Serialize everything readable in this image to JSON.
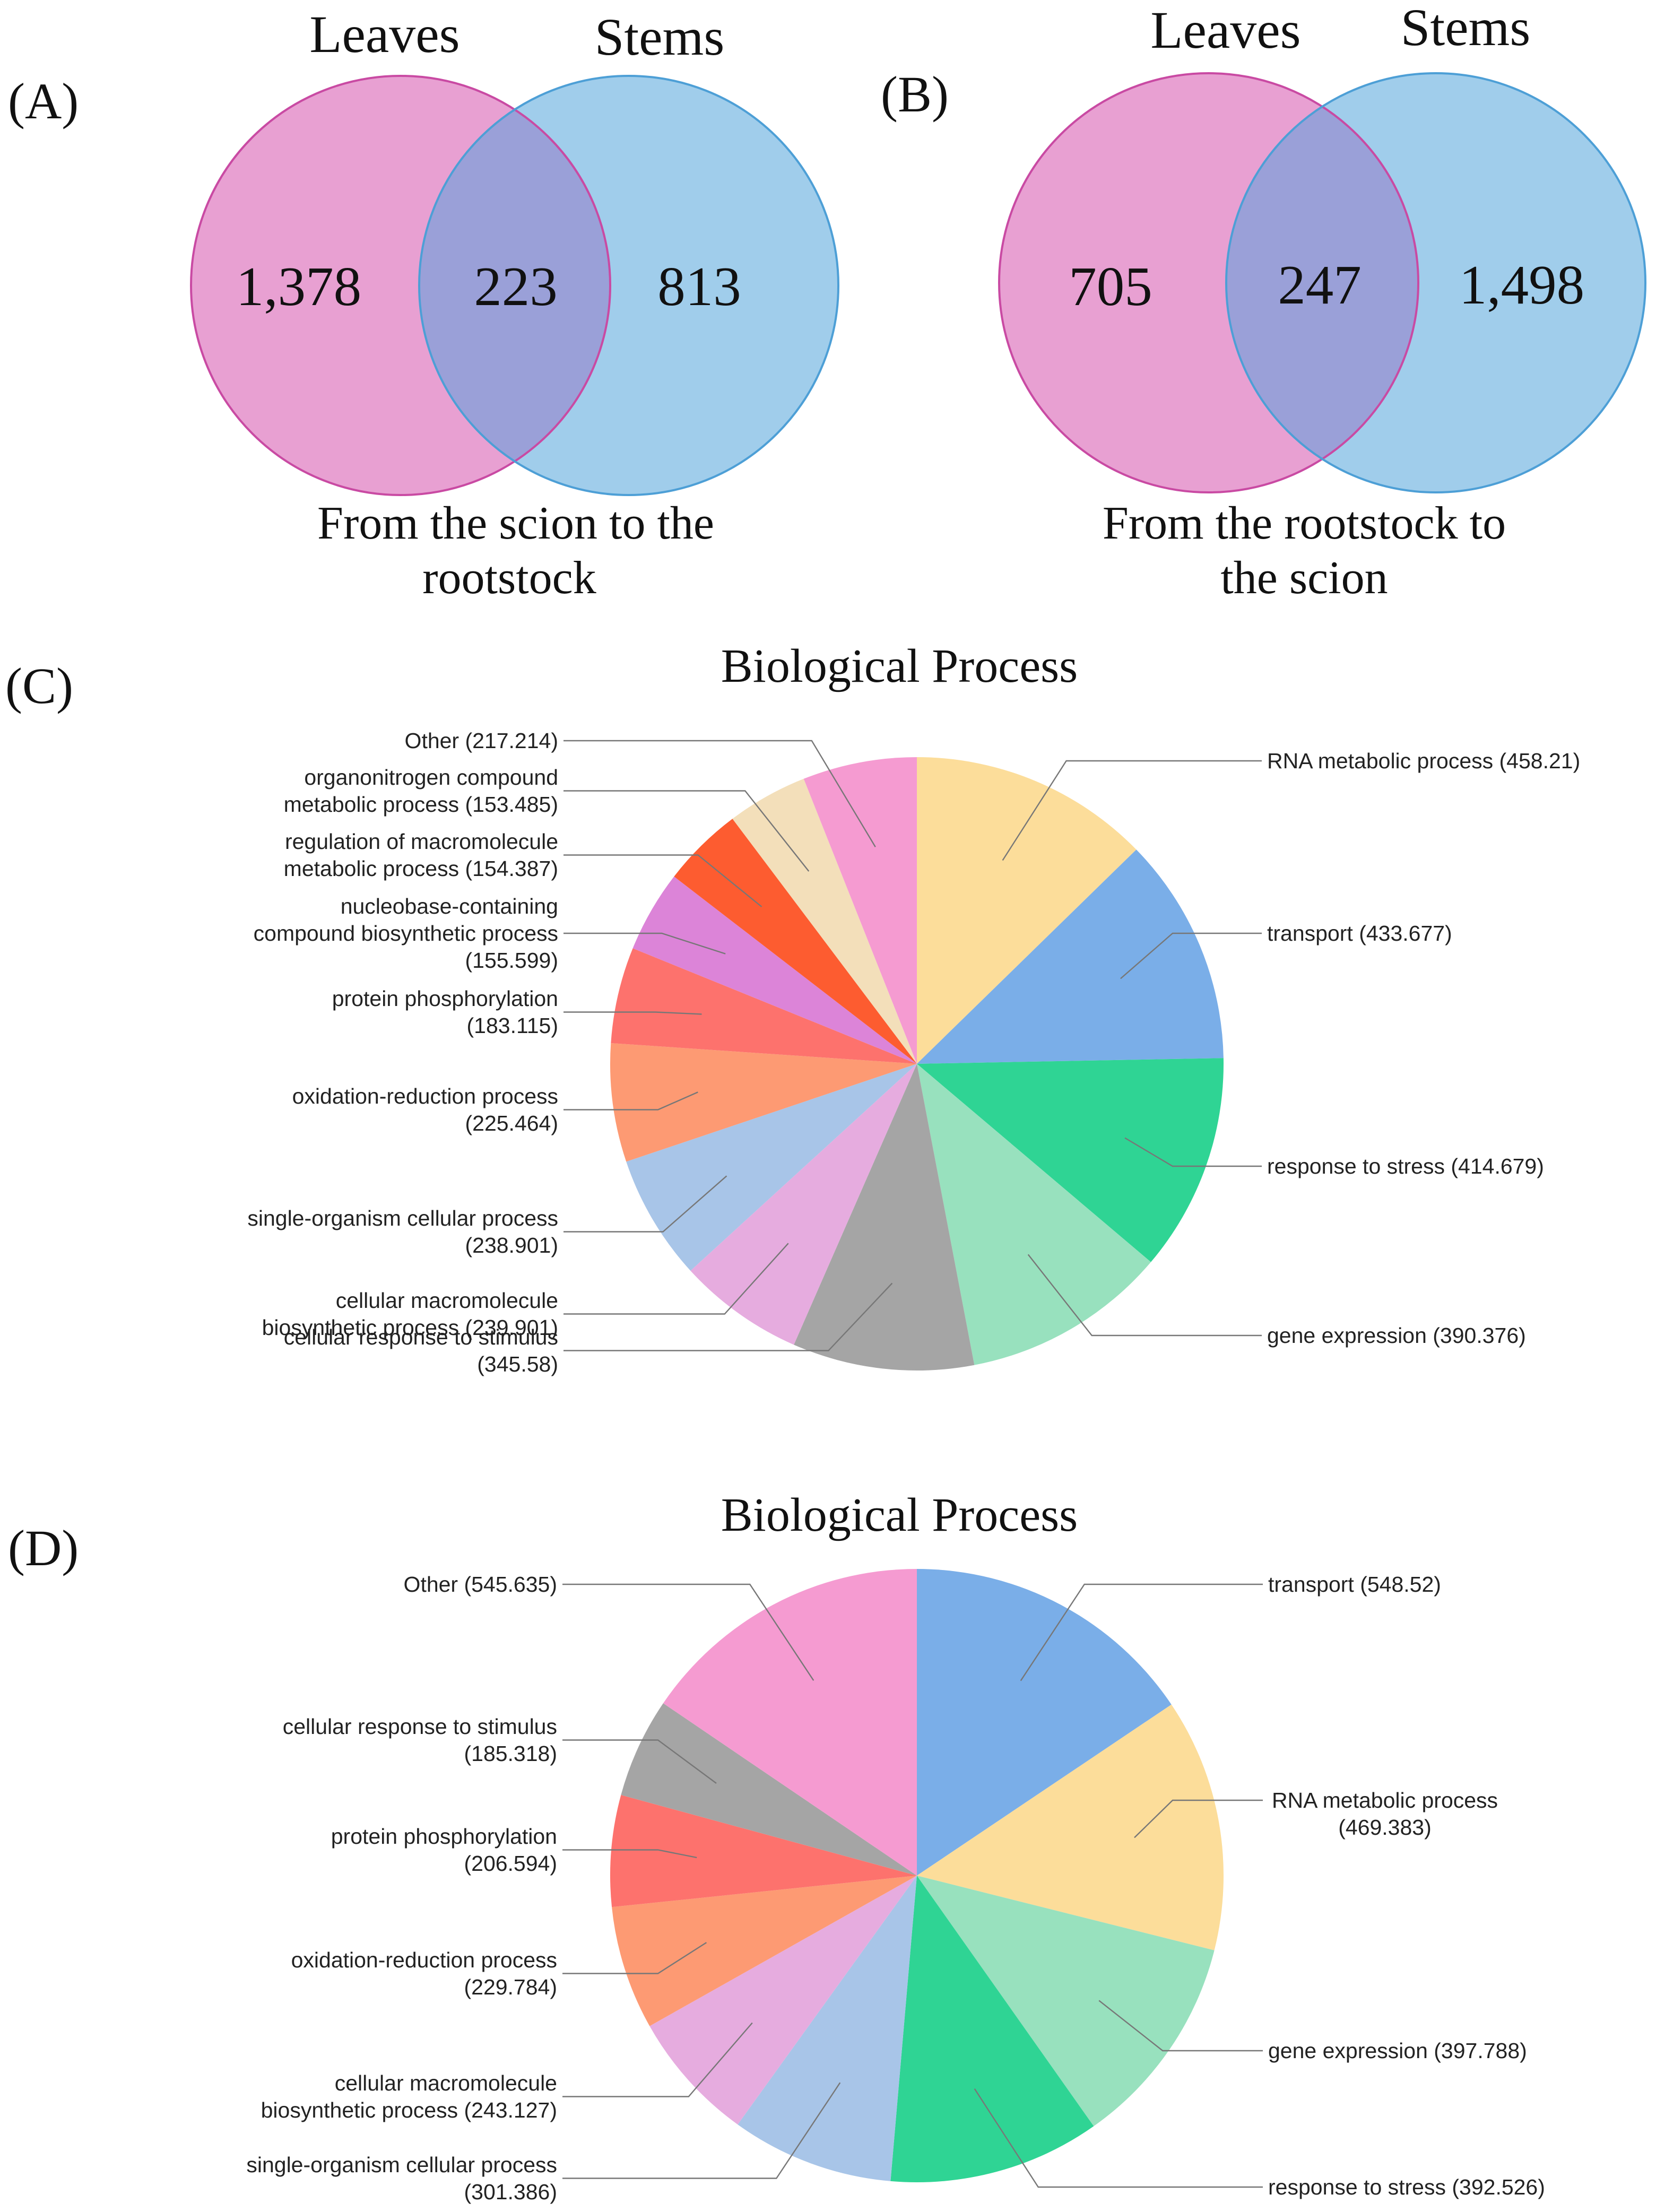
{
  "chart_data": [
    {
      "type": "venn",
      "panel": "(A)",
      "sets": [
        "Leaves",
        "Stems"
      ],
      "values": {
        "leaves_only": "1,378",
        "both": "223",
        "stems_only": "813"
      },
      "caption_lines": [
        "From the scion to the",
        "rootstock"
      ],
      "colors": {
        "leaves": "#e8a0d2",
        "leaves_stroke": "#c94aa3",
        "stems": "#a0cdeb",
        "stems_stroke": "#4d9fd6",
        "overlap": "#9aa0d8"
      }
    },
    {
      "type": "venn",
      "panel": "(B)",
      "sets": [
        "Leaves",
        "Stems"
      ],
      "values": {
        "leaves_only": "705",
        "both": "247",
        "stems_only": "1,498"
      },
      "caption_lines": [
        "From the rootstock to",
        "the scion"
      ],
      "colors": {
        "leaves": "#e8a0d2",
        "leaves_stroke": "#c94aa3",
        "stems": "#a0cdeb",
        "stems_stroke": "#4d9fd6",
        "overlap": "#9aa0d8"
      }
    },
    {
      "type": "pie",
      "panel": "(C)",
      "title": "Biological Process",
      "start_angle": 0,
      "direction": "clockwise",
      "slices": [
        {
          "name": "RNA metabolic process",
          "value": 458.21,
          "label": [
            "RNA metabolic process (458.21)"
          ],
          "side": "right",
          "color": "#fcdd9a"
        },
        {
          "name": "transport",
          "value": 433.677,
          "label": [
            "transport (433.677)"
          ],
          "side": "right",
          "color": "#7aaee8"
        },
        {
          "name": "response to stress",
          "value": 414.679,
          "label": [
            "response to stress (414.679)"
          ],
          "side": "right",
          "color": "#2fd494"
        },
        {
          "name": "gene expression",
          "value": 390.376,
          "label": [
            "gene expression (390.376)"
          ],
          "side": "right",
          "color": "#98e1be"
        },
        {
          "name": "cellular response to stimulus",
          "value": 345.58,
          "label": [
            "cellular response to stimulus",
            "(345.58)"
          ],
          "side": "left",
          "color": "#a5a5a5"
        },
        {
          "name": "cellular macromolecule biosynthetic process",
          "value": 239.901,
          "label": [
            "cellular macromolecule",
            "biosynthetic process (239.901)"
          ],
          "side": "left",
          "color": "#e6acdf"
        },
        {
          "name": "single-organism cellular process",
          "value": 238.901,
          "label": [
            "single-organism cellular process",
            "(238.901)"
          ],
          "side": "left",
          "color": "#a8c5e8"
        },
        {
          "name": "oxidation-reduction process",
          "value": 225.464,
          "label": [
            "oxidation-reduction process",
            "(225.464)"
          ],
          "side": "left",
          "color": "#fd9a73"
        },
        {
          "name": "protein phosphorylation",
          "value": 183.115,
          "label": [
            "protein phosphorylation",
            "(183.115)"
          ],
          "side": "left",
          "color": "#fd726d"
        },
        {
          "name": "nucleobase-containing compound biosynthetic process",
          "value": 155.599,
          "label": [
            "nucleobase-containing",
            "compound biosynthetic process",
            "(155.599)"
          ],
          "side": "left",
          "color": "#dc84d8"
        },
        {
          "name": "regulation of macromolecule metabolic process",
          "value": 154.387,
          "label": [
            "regulation of macromolecule",
            "metabolic process (154.387)"
          ],
          "side": "left",
          "color": "#fd5c30"
        },
        {
          "name": "organonitrogen compound metabolic process",
          "value": 153.485,
          "label": [
            "organonitrogen compound",
            "metabolic process (153.485)"
          ],
          "side": "left",
          "color": "#f3dfba"
        },
        {
          "name": "Other",
          "value": 217.214,
          "label": [
            "Other (217.214)"
          ],
          "side": "left",
          "color": "#f59bd1"
        }
      ]
    },
    {
      "type": "pie",
      "panel": "(D)",
      "title": "Biological Process",
      "start_angle": 0,
      "direction": "clockwise",
      "slices": [
        {
          "name": "transport",
          "value": 548.52,
          "label": [
            "transport (548.52)"
          ],
          "side": "right",
          "color": "#7aaee8"
        },
        {
          "name": "RNA metabolic process",
          "value": 469.383,
          "label": [
            "RNA metabolic process",
            "(469.383)"
          ],
          "side": "right",
          "color": "#fcdd9a"
        },
        {
          "name": "gene expression",
          "value": 397.788,
          "label": [
            "gene expression (397.788)"
          ],
          "side": "right",
          "color": "#98e1be"
        },
        {
          "name": "response to stress",
          "value": 392.526,
          "label": [
            "response to stress (392.526)"
          ],
          "side": "right",
          "color": "#2fd494"
        },
        {
          "name": "single-organism cellular process",
          "value": 301.386,
          "label": [
            "single-organism cellular process",
            "(301.386)"
          ],
          "side": "left",
          "color": "#a8c5e8"
        },
        {
          "name": "cellular macromolecule biosynthetic process",
          "value": 243.127,
          "label": [
            "cellular macromolecule",
            "biosynthetic process (243.127)"
          ],
          "side": "left",
          "color": "#e6acdf"
        },
        {
          "name": "oxidation-reduction process",
          "value": 229.784,
          "label": [
            "oxidation-reduction process",
            "(229.784)"
          ],
          "side": "left",
          "color": "#fd9a73"
        },
        {
          "name": "protein phosphorylation",
          "value": 206.594,
          "label": [
            "protein phosphorylation",
            "(206.594)"
          ],
          "side": "left",
          "color": "#fd726d"
        },
        {
          "name": "cellular response to stimulus",
          "value": 185.318,
          "label": [
            "cellular response to stimulus",
            "(185.318)"
          ],
          "side": "left",
          "color": "#a5a5a5"
        },
        {
          "name": "Other",
          "value": 545.635,
          "label": [
            "Other (545.635)"
          ],
          "side": "left",
          "color": "#f59bd1"
        }
      ]
    }
  ]
}
